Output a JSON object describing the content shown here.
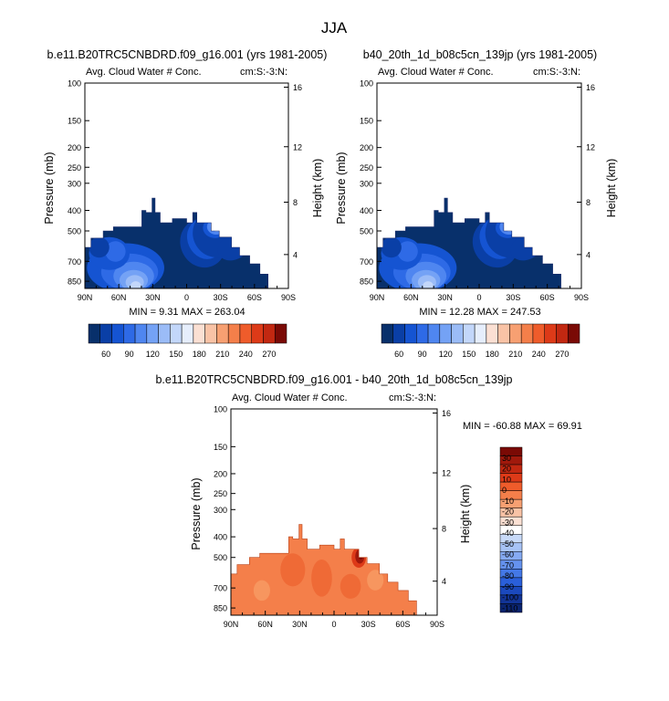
{
  "figure": {
    "title": "JJA"
  },
  "colors": {
    "blues": [
      "#08306b",
      "#0a3fa6",
      "#1554d2",
      "#2e6ae6",
      "#4f86f0",
      "#74a2f5",
      "#9bbcf7",
      "#c3d7fa",
      "#e6eefc"
    ],
    "reds": [
      "#fbe0d3",
      "#f9c3a6",
      "#f7a072",
      "#f47f4a",
      "#ef5c2b",
      "#dd3a18",
      "#c22811",
      "#a0190c",
      "#7a0a05"
    ],
    "diff_colors": [
      "#7a0a05",
      "#a0190c",
      "#c22811",
      "#dd3a18",
      "#ef5c2b",
      "#f47f4a",
      "#f7a072",
      "#f9c3a6",
      "#fbe0d3",
      "#ffffff",
      "#c8daf9",
      "#a7c3f6",
      "#86abf3",
      "#6592ee",
      "#4478e6",
      "#2a5fda",
      "#1b49bd",
      "#123496",
      "#0a2470"
    ],
    "terrain": "#ffffff"
  },
  "chart_data": [
    {
      "type": "heatmap",
      "title": "b.e11.B20TRC5CNBDRD.f09_g16.001 (yrs 1981-2005)",
      "left_label": "Avg. Cloud Water # Conc.",
      "right_label": "cm:S:-3:N:",
      "xlabel": "",
      "ylabel": "Pressure (mb)",
      "ylabel_right": "Height (km)",
      "x_ticks": [
        "90N",
        "60N",
        "30N",
        "0",
        "30S",
        "60S",
        "90S"
      ],
      "y_ticks": [
        "100",
        "150",
        "200",
        "250",
        "300",
        "400",
        "500",
        "700",
        "850"
      ],
      "y_right_ticks": [
        "16",
        "12",
        "8",
        "4"
      ],
      "min_text": "MIN =   9.31",
      "max_text": "MAX = 263.04",
      "colorbar_labels": [
        "60",
        "90",
        "120",
        "150",
        "180",
        "210",
        "240",
        "270"
      ]
    },
    {
      "type": "heatmap",
      "title": "b40_20th_1d_b08c5cn_139jp (yrs 1981-2005)",
      "left_label": "Avg. Cloud Water # Conc.",
      "right_label": "cm:S:-3:N:",
      "xlabel": "",
      "ylabel": "Pressure (mb)",
      "ylabel_right": "Height (km)",
      "x_ticks": [
        "90N",
        "60N",
        "30N",
        "0",
        "30S",
        "60S",
        "90S"
      ],
      "y_ticks": [
        "100",
        "150",
        "200",
        "250",
        "300",
        "400",
        "500",
        "700",
        "850"
      ],
      "y_right_ticks": [
        "16",
        "12",
        "8",
        "4"
      ],
      "min_text": "MIN =  12.28",
      "max_text": "MAX = 247.53",
      "colorbar_labels": [
        "60",
        "90",
        "120",
        "150",
        "180",
        "210",
        "240",
        "270"
      ]
    },
    {
      "type": "heatmap",
      "title": "b.e11.B20TRC5CNBDRD.f09_g16.001 - b40_20th_1d_b08c5cn_139jp",
      "left_label": "Avg. Cloud Water # Conc.",
      "right_label": "cm:S:-3:N:",
      "xlabel": "",
      "ylabel": "Pressure (mb)",
      "ylabel_right": "Height (km)",
      "x_ticks": [
        "90N",
        "60N",
        "30N",
        "0",
        "30S",
        "60S",
        "90S"
      ],
      "y_ticks": [
        "100",
        "150",
        "200",
        "250",
        "300",
        "400",
        "500",
        "700",
        "850"
      ],
      "y_right_ticks": [
        "16",
        "12",
        "8",
        "4"
      ],
      "min_text": "MIN = -60.88",
      "max_text": "MAX =  69.91",
      "colorbar_labels": [
        "30",
        "20",
        "10",
        "0",
        "-10",
        "-20",
        "-30",
        "-40",
        "-50",
        "-60",
        "-70",
        "-80",
        "-90",
        "-100",
        "-110"
      ]
    }
  ]
}
